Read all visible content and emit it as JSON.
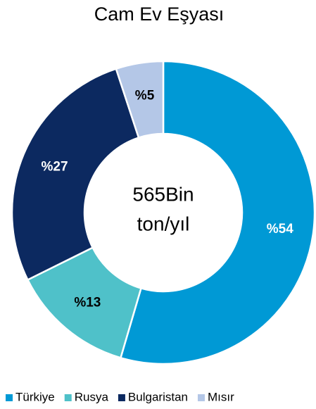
{
  "chart_data": {
    "type": "donut",
    "title": "Cam Ev Eşyası",
    "center_label": [
      "565Bin",
      "ton/yıl"
    ],
    "categories": [
      "Türkiye",
      "Rusya",
      "Bulgaristan",
      "Mısır"
    ],
    "values": [
      54,
      13,
      27,
      5
    ],
    "value_labels": [
      "%54",
      "%13",
      "%27",
      "%5"
    ],
    "colors": [
      "#0099d5",
      "#4fc1c9",
      "#0c2960",
      "#b4c7e7"
    ],
    "legend": "bottom"
  }
}
